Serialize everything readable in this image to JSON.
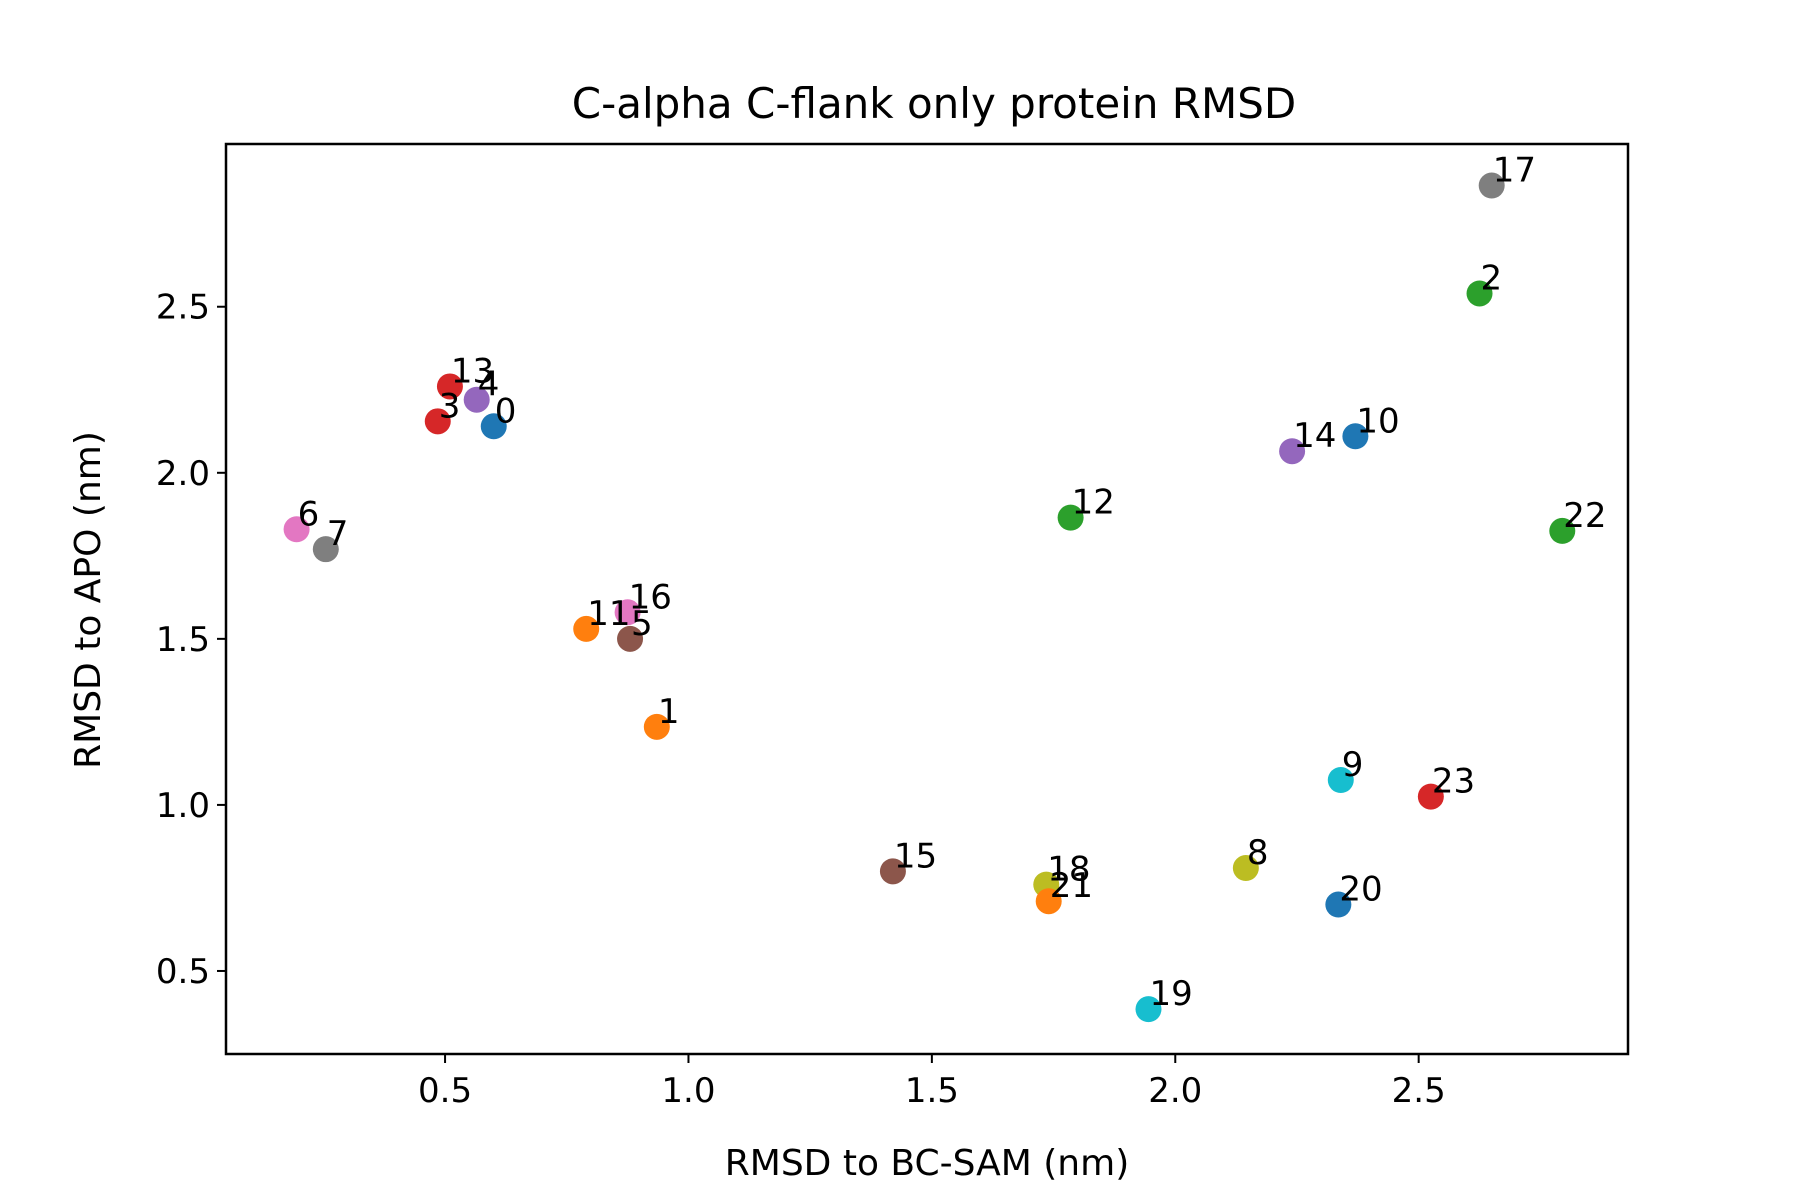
{
  "chart_data": {
    "type": "scatter",
    "title": "C-alpha C-flank only protein RMSD",
    "xlabel": "RMSD to BC-SAM (nm)",
    "ylabel": "RMSD to APO (nm)",
    "xlim": [
      0.05,
      2.93
    ],
    "ylim": [
      0.25,
      2.99
    ],
    "xticks": [
      "0.5",
      "1.0",
      "1.5",
      "2.0",
      "2.5"
    ],
    "yticks": [
      "0.5",
      "1.0",
      "1.5",
      "2.0",
      "2.5"
    ],
    "grid": false,
    "points": [
      {
        "label": "0",
        "x": 0.6,
        "y": 2.14,
        "color": "#1f77b4"
      },
      {
        "label": "1",
        "x": 0.935,
        "y": 1.235,
        "color": "#ff7f0e"
      },
      {
        "label": "2",
        "x": 2.625,
        "y": 2.54,
        "color": "#2ca02c"
      },
      {
        "label": "3",
        "x": 0.485,
        "y": 2.155,
        "color": "#d62728"
      },
      {
        "label": "4",
        "x": 0.565,
        "y": 2.22,
        "color": "#9467bd"
      },
      {
        "label": "5",
        "x": 0.88,
        "y": 1.5,
        "color": "#8c564b"
      },
      {
        "label": "6",
        "x": 0.195,
        "y": 1.83,
        "color": "#e377c2"
      },
      {
        "label": "7",
        "x": 0.255,
        "y": 1.77,
        "color": "#7f7f7f"
      },
      {
        "label": "8",
        "x": 2.145,
        "y": 0.81,
        "color": "#bcbd22"
      },
      {
        "label": "9",
        "x": 2.34,
        "y": 1.075,
        "color": "#17becf"
      },
      {
        "label": "10",
        "x": 2.37,
        "y": 2.11,
        "color": "#1f77b4"
      },
      {
        "label": "11",
        "x": 0.79,
        "y": 1.53,
        "color": "#ff7f0e"
      },
      {
        "label": "12",
        "x": 1.785,
        "y": 1.865,
        "color": "#2ca02c"
      },
      {
        "label": "13",
        "x": 0.51,
        "y": 2.26,
        "color": "#d62728"
      },
      {
        "label": "14",
        "x": 2.24,
        "y": 2.065,
        "color": "#9467bd"
      },
      {
        "label": "15",
        "x": 1.42,
        "y": 0.8,
        "color": "#8c564b"
      },
      {
        "label": "16",
        "x": 0.875,
        "y": 1.58,
        "color": "#e377c2"
      },
      {
        "label": "17",
        "x": 2.65,
        "y": 2.865,
        "color": "#7f7f7f"
      },
      {
        "label": "18",
        "x": 1.735,
        "y": 0.76,
        "color": "#bcbd22"
      },
      {
        "label": "19",
        "x": 1.945,
        "y": 0.385,
        "color": "#17becf"
      },
      {
        "label": "20",
        "x": 2.335,
        "y": 0.7,
        "color": "#1f77b4"
      },
      {
        "label": "21",
        "x": 1.74,
        "y": 0.71,
        "color": "#ff7f0e"
      },
      {
        "label": "22",
        "x": 2.795,
        "y": 1.825,
        "color": "#2ca02c"
      },
      {
        "label": "23",
        "x": 2.525,
        "y": 1.025,
        "color": "#d62728"
      }
    ]
  }
}
